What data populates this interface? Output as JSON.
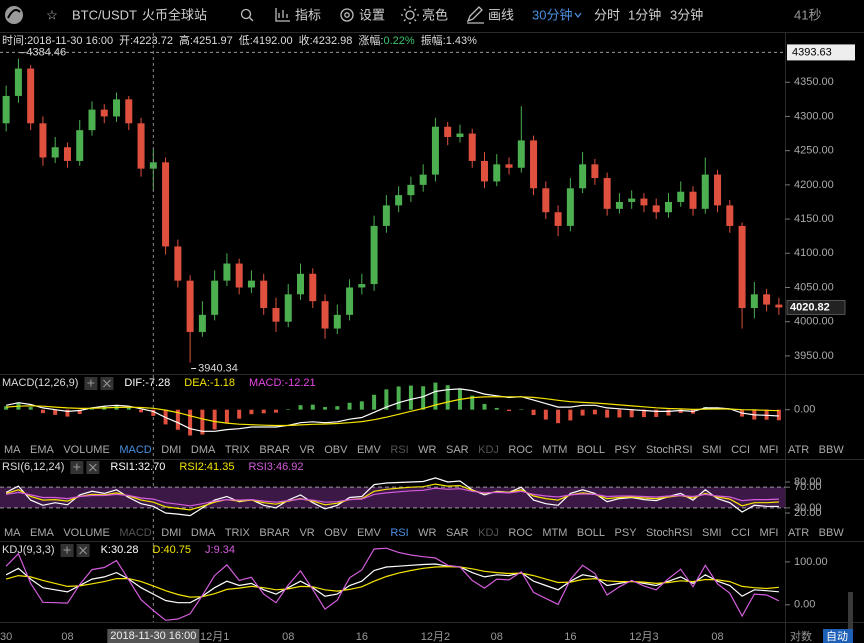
{
  "toolbar": {
    "symbol": "BTC/USDT",
    "exchange": "火币全球站",
    "tools": [
      "指标",
      "设置",
      "亮色",
      "画线"
    ],
    "intervals": [
      "30分钟",
      "分时",
      "1分钟",
      "3分钟"
    ],
    "countdown": "41秒"
  },
  "indicator_tabs": [
    "MA",
    "EMA",
    "VOLUME",
    "MACD",
    "DMI",
    "DMA",
    "TRIX",
    "BRAR",
    "VR",
    "OBV",
    "EMV",
    "RSI",
    "WR",
    "SAR",
    "KDJ",
    "ROC",
    "MTM",
    "BOLL",
    "PSY",
    "StochRSI",
    "SMI",
    "CCI",
    "MFI",
    "ATR",
    "BBW"
  ],
  "chart_data": [
    {
      "type": "candlestick",
      "info": [
        {
          "label": "时间:",
          "value": "2018-11-30 16:00"
        },
        {
          "label": "开:",
          "value": "4223.72"
        },
        {
          "label": "高:",
          "value": "4251.97"
        },
        {
          "label": "低:",
          "value": "4192.00"
        },
        {
          "label": "收:",
          "value": "4232.98"
        },
        {
          "label": "涨幅:",
          "value": "0.22%",
          "color": "#3cc46e"
        },
        {
          "label": "振幅:",
          "value": "1.43%"
        }
      ],
      "categories": [
        "30",
        null,
        null,
        null,
        null,
        "08",
        null,
        null,
        null,
        null,
        null,
        null,
        "2018-11-30 16:00",
        null,
        null,
        null,
        null,
        "12月1",
        null,
        null,
        null,
        null,
        null,
        "08",
        null,
        null,
        null,
        null,
        null,
        "16",
        null,
        null,
        null,
        null,
        null,
        "12月2",
        null,
        null,
        null,
        null,
        "08",
        null,
        null,
        null,
        null,
        null,
        "16",
        null,
        null,
        null,
        null,
        null,
        "12月3",
        null,
        null,
        null,
        null,
        null,
        "08",
        null,
        null,
        null,
        null,
        null
      ],
      "open": [
        4290,
        4330,
        4370,
        4290,
        4240,
        4255,
        4235,
        4280,
        4310,
        4300,
        4325,
        4290,
        4223.72,
        4232.98,
        4110,
        4060,
        3985,
        4010,
        4060,
        4085,
        4050,
        4060,
        4020,
        4000,
        4040,
        4070,
        4030,
        3990,
        4010,
        4050,
        4055,
        4140,
        4170,
        4185,
        4200,
        4215,
        4285,
        4270,
        4275,
        4235,
        4205,
        4230,
        4225,
        4265,
        4195,
        4160,
        4140,
        4195,
        4230,
        4210,
        4165,
        4175,
        4180,
        4170,
        4160,
        4175,
        4190,
        4165,
        4215,
        4170,
        4140,
        4020,
        4040,
        4025
      ],
      "high": [
        4345,
        4384.46,
        4375,
        4300,
        4270,
        4262,
        4295,
        4322,
        4318,
        4335,
        4330,
        4298,
        4251.97,
        4240,
        4120,
        4068,
        4030,
        4075,
        4100,
        4092,
        4075,
        4070,
        4035,
        4055,
        4085,
        4078,
        4040,
        4025,
        4062,
        4070,
        4155,
        4185,
        4198,
        4212,
        4230,
        4298,
        4292,
        4288,
        4282,
        4248,
        4245,
        4240,
        4315,
        4272,
        4205,
        4170,
        4210,
        4248,
        4238,
        4218,
        4188,
        4192,
        4188,
        4180,
        4188,
        4205,
        4198,
        4240,
        4222,
        4178,
        4145,
        4058,
        4048,
        4035
      ],
      "low": [
        4278,
        4320,
        4280,
        4228,
        4232,
        4225,
        4228,
        4272,
        4290,
        4292,
        4280,
        4212,
        4192,
        4098,
        4050,
        3940.34,
        3978,
        4002,
        4052,
        4040,
        4042,
        4010,
        3985,
        3992,
        4032,
        4020,
        3975,
        3982,
        4002,
        4040,
        4045,
        4130,
        4160,
        4175,
        4190,
        4205,
        4258,
        4262,
        4225,
        4195,
        4198,
        4215,
        4218,
        4185,
        4150,
        4125,
        4132,
        4188,
        4200,
        4155,
        4158,
        4165,
        4160,
        4150,
        4152,
        4168,
        4155,
        4158,
        4160,
        4130,
        3990,
        4005,
        4015,
        4010
      ],
      "close": [
        4330,
        4370,
        4290,
        4240,
        4255,
        4235,
        4280,
        4310,
        4300,
        4325,
        4290,
        4223.72,
        4232.98,
        4110,
        4060,
        3985,
        4010,
        4060,
        4085,
        4050,
        4060,
        4020,
        4000,
        4040,
        4070,
        4030,
        3990,
        4010,
        4050,
        4055,
        4140,
        4170,
        4185,
        4200,
        4215,
        4285,
        4270,
        4275,
        4235,
        4205,
        4230,
        4225,
        4265,
        4195,
        4160,
        4140,
        4195,
        4230,
        4210,
        4165,
        4175,
        4180,
        4170,
        4160,
        4175,
        4190,
        4165,
        4215,
        4170,
        4140,
        4020,
        4040,
        4025,
        4020.82
      ],
      "up_color": "#4caf50",
      "down_color": "#e0503e",
      "ylim": [
        3925,
        4422
      ],
      "yticks": [
        {
          "value": 3950,
          "label": "3950.00"
        },
        {
          "value": 4000,
          "label": "4000.00"
        },
        {
          "value": 4050,
          "label": "4050.00"
        },
        {
          "value": 4100,
          "label": "4100.00"
        },
        {
          "value": 4150,
          "label": "4150.00"
        },
        {
          "value": 4200,
          "label": "4200.00"
        },
        {
          "value": 4250,
          "label": "4250.00"
        },
        {
          "value": 4300,
          "label": "4300.00"
        },
        {
          "value": 4350,
          "label": "4350.00"
        }
      ],
      "max_marker": {
        "value": 4384.46,
        "label": "4384.46"
      },
      "min_marker": {
        "value": 3940.34,
        "label": "3940.34"
      },
      "last_price": {
        "value": 4020.82,
        "label": "4020.82"
      },
      "crosshair_price": {
        "value": 4393.63,
        "label": "4393.63"
      },
      "scale_options": [
        "对数",
        "自动"
      ]
    },
    {
      "type": "line",
      "title": "MACD(12,26,9)",
      "series": [
        {
          "name": "MACD:-12.21",
          "type": "bar",
          "color": "#e546e5",
          "up_color": "#4caf50",
          "down_color": "#e0503e",
          "values": [
            4,
            8,
            3,
            -4,
            -6,
            -8,
            -5,
            0.8,
            4,
            4.8,
            2.2,
            -3,
            -7.2,
            -17,
            -23.2,
            -29.8,
            -28.6,
            -22.8,
            -15,
            -10.4,
            -5.2,
            -4.2,
            -3.4,
            0.6,
            5.2,
            5.8,
            3,
            4,
            8,
            9.6,
            17.2,
            23.4,
            26.8,
            27.8,
            27,
            31.2,
            28.2,
            24.2,
            16.2,
            6.6,
            2,
            -1.6,
            0.4,
            -6.2,
            -11.4,
            -15.6,
            -12.4,
            -6.8,
            -5.4,
            -9.2,
            -9,
            -8.8,
            -8.6,
            -8.4,
            -6.8,
            -3.8,
            -4.6,
            3,
            2.4,
            0.4,
            -8,
            -11.4,
            -11.6,
            -12.21
          ]
        },
        {
          "name": "DIF:-7.28",
          "color": "#ffffff",
          "values": [
            5,
            8,
            6,
            2,
            0,
            -2,
            -1,
            2,
            4,
            5,
            4,
            1,
            -2,
            -9,
            -15,
            -22,
            -25,
            -25,
            -23,
            -22,
            -20,
            -20,
            -20,
            -18,
            -15,
            -14,
            -15,
            -14,
            -11,
            -9,
            -3,
            3,
            8,
            12,
            15,
            21,
            23,
            24,
            22,
            18,
            16,
            14,
            15,
            11,
            7,
            3,
            3,
            5,
            5,
            2,
            1,
            0,
            -1,
            -2,
            -2,
            -1,
            -2,
            2,
            2,
            1,
            -4,
            -6,
            -6.5,
            -7.28
          ]
        },
        {
          "name": "DEA:-1.18",
          "color": "#f5e400",
          "values": [
            3,
            4,
            4.5,
            4,
            3,
            2,
            1.5,
            1.6,
            2,
            2.6,
            2.9,
            2.5,
            1.6,
            -0.5,
            -3.4,
            -7.1,
            -10.7,
            -13.6,
            -15.5,
            -16.8,
            -17.4,
            -17.9,
            -18.3,
            -18.3,
            -17.6,
            -16.9,
            -16.5,
            -16,
            -15,
            -13.8,
            -11.6,
            -8.7,
            -5.4,
            -1.9,
            1.5,
            5.4,
            8.9,
            11.9,
            13.9,
            14.7,
            15,
            14.8,
            14.8,
            14.1,
            12.7,
            10.8,
            9.2,
            8.4,
            7.7,
            6.6,
            5.5,
            4.4,
            3.3,
            2.2,
            1.4,
            0.9,
            0.3,
            0.5,
            0.8,
            0.8,
            0,
            -0.3,
            -0.7,
            -1.18
          ]
        }
      ],
      "legend_order": [
        "DIF:-7.28",
        "DEA:-1.18",
        "MACD:-12.21"
      ],
      "ylim": [
        -35,
        40
      ],
      "yticks": [
        {
          "value": 0,
          "label": "0.00"
        }
      ]
    },
    {
      "type": "line",
      "title": "RSI(6,12,24)",
      "series": [
        {
          "name": "RSI1:32.70",
          "color": "#ffffff",
          "values": [
            60,
            72,
            45,
            35,
            40,
            36,
            55,
            62,
            58,
            65,
            50,
            38,
            33,
            20,
            18,
            15,
            30,
            45,
            52,
            42,
            46,
            35,
            30,
            45,
            55,
            40,
            28,
            35,
            50,
            52,
            75,
            78,
            79,
            80,
            81,
            88,
            80,
            82,
            65,
            55,
            62,
            60,
            70,
            45,
            38,
            35,
            58,
            65,
            58,
            42,
            48,
            50,
            46,
            44,
            52,
            58,
            45,
            65,
            48,
            40,
            22,
            35,
            33,
            32.7
          ]
        },
        {
          "name": "RSI2:41.35",
          "color": "#f5e400",
          "values": [
            58,
            65,
            52,
            45,
            46,
            43,
            52,
            56,
            55,
            59,
            53,
            45,
            41,
            32,
            29,
            26,
            33,
            41,
            46,
            43,
            45,
            40,
            37,
            43,
            48,
            43,
            36,
            39,
            46,
            48,
            62,
            66,
            68,
            70,
            71,
            76,
            72,
            73,
            64,
            58,
            61,
            60,
            65,
            53,
            48,
            45,
            55,
            59,
            56,
            48,
            50,
            51,
            49,
            48,
            51,
            54,
            49,
            58,
            51,
            47,
            34,
            40,
            40,
            41.35
          ]
        },
        {
          "name": "RSI3:46.92",
          "color": "#d35ddb",
          "values": [
            56,
            60,
            55,
            50,
            50,
            48,
            52,
            54,
            54,
            56,
            54,
            49,
            47,
            40,
            37,
            34,
            38,
            43,
            46,
            45,
            46,
            43,
            41,
            44,
            47,
            45,
            41,
            42,
            46,
            47,
            56,
            59,
            61,
            63,
            64,
            68,
            66,
            67,
            62,
            59,
            60,
            59,
            62,
            56,
            53,
            51,
            55,
            57,
            56,
            52,
            53,
            53,
            52,
            51,
            53,
            54,
            52,
            56,
            53,
            51,
            44,
            46,
            46,
            46.92
          ]
        }
      ],
      "band": [
        30,
        70
      ],
      "band_color": "#3b1846",
      "ylim": [
        6.5,
        122.6
      ],
      "yticks": [
        {
          "value": 20,
          "label": "20.00"
        },
        {
          "value": 30,
          "label": "30.00"
        },
        {
          "value": 70,
          "label": "70.00"
        },
        {
          "value": 80,
          "label": "80.00"
        }
      ]
    },
    {
      "type": "line",
      "title": "KDJ(9,3,3)",
      "series": [
        {
          "name": "K:30.28",
          "color": "#ffffff",
          "values": [
            70,
            85,
            60,
            40,
            35,
            30,
            45,
            60,
            65,
            75,
            60,
            40,
            25,
            10,
            5,
            5,
            20,
            40,
            55,
            45,
            50,
            35,
            25,
            40,
            55,
            40,
            20,
            25,
            45,
            55,
            80,
            88,
            90,
            92,
            94,
            95,
            90,
            88,
            75,
            65,
            70,
            68,
            75,
            55,
            45,
            35,
            55,
            70,
            65,
            45,
            50,
            55,
            50,
            45,
            55,
            65,
            50,
            70,
            55,
            45,
            20,
            35,
            33,
            30.28
          ]
        },
        {
          "name": "D:40.75",
          "color": "#f5e400",
          "values": [
            60,
            68,
            65,
            57,
            50,
            43,
            44,
            49,
            54,
            61,
            61,
            54,
            44,
            33,
            24,
            18,
            19,
            26,
            36,
            39,
            43,
            40,
            35,
            37,
            43,
            42,
            35,
            32,
            36,
            42,
            55,
            66,
            74,
            80,
            85,
            88,
            89,
            88,
            84,
            78,
            75,
            73,
            74,
            68,
            60,
            52,
            53,
            59,
            61,
            56,
            54,
            54,
            53,
            50,
            52,
            56,
            54,
            59,
            58,
            54,
            43,
            40,
            38,
            40.75
          ]
        },
        {
          "name": "J:9.34",
          "color": "#d35ddb",
          "values": [
            90,
            119,
            50,
            6,
            5,
            4,
            47,
            82,
            87,
            103,
            58,
            12,
            -13,
            -36,
            -33,
            -21,
            22,
            68,
            93,
            57,
            64,
            25,
            5,
            46,
            79,
            36,
            -10,
            11,
            63,
            81,
            130,
            132,
            122,
            116,
            112,
            109,
            92,
            88,
            57,
            39,
            60,
            58,
            77,
            29,
            15,
            1,
            59,
            92,
            73,
            23,
            42,
            57,
            44,
            35,
            61,
            83,
            42,
            92,
            49,
            27,
            -26,
            25,
            23,
            9.34
          ]
        }
      ],
      "ylim": [
        -40,
        144
      ],
      "yticks": [
        {
          "value": 0,
          "label": "0.00"
        },
        {
          "value": 100,
          "label": "100.00"
        }
      ]
    }
  ]
}
